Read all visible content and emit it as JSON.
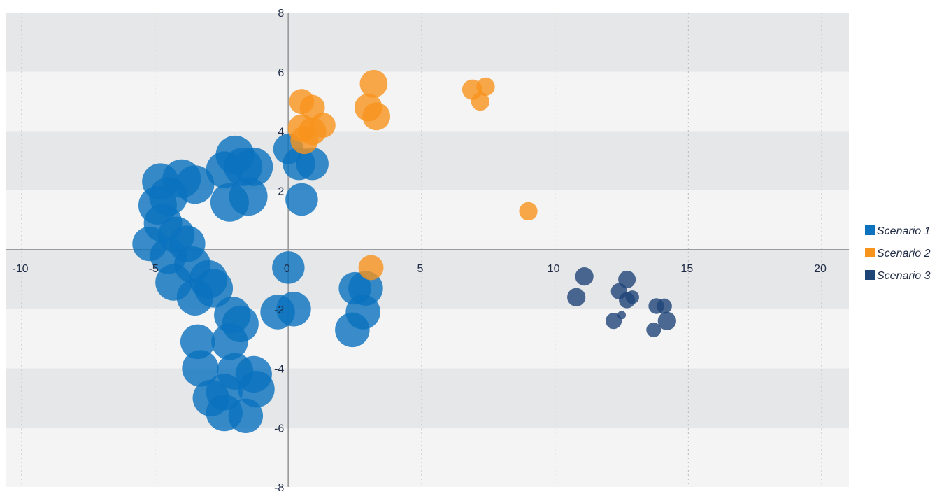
{
  "chart_data": {
    "type": "scatter",
    "subtype": "bubble",
    "title": "",
    "xlabel": "",
    "ylabel": "",
    "xlim": [
      -10,
      21
    ],
    "ylim": [
      -8,
      8
    ],
    "x_ticks": [
      -10,
      -5,
      0,
      5,
      10,
      15,
      20
    ],
    "y_ticks": [
      -8,
      -6,
      -4,
      -2,
      2,
      4,
      6,
      8
    ],
    "x_tick_labels": [
      "-10",
      "-5",
      "0",
      "5",
      "10",
      "15",
      "20"
    ],
    "y_tick_labels": [
      "-8",
      "-6",
      "-4",
      "-2",
      "2",
      "4",
      "6",
      "8"
    ],
    "grid": {
      "x": "dotted vertical",
      "y": "alternating horizontal bands"
    },
    "legend": "right",
    "series": [
      {
        "name": "Scenario 1",
        "color": "#0a72be",
        "points": [
          {
            "x": -2.0,
            "y": 3.2,
            "size": 10
          },
          {
            "x": -1.7,
            "y": 2.8,
            "size": 10
          },
          {
            "x": -2.4,
            "y": 2.7,
            "size": 9
          },
          {
            "x": -1.3,
            "y": 2.8,
            "size": 10
          },
          {
            "x": -1.5,
            "y": 1.8,
            "size": 10
          },
          {
            "x": -2.2,
            "y": 1.6,
            "size": 10
          },
          {
            "x": -4.0,
            "y": 2.4,
            "size": 10
          },
          {
            "x": -4.8,
            "y": 2.3,
            "size": 9
          },
          {
            "x": -3.5,
            "y": 2.2,
            "size": 10
          },
          {
            "x": -4.5,
            "y": 1.8,
            "size": 10
          },
          {
            "x": -4.9,
            "y": 1.5,
            "size": 10
          },
          {
            "x": -4.7,
            "y": 0.9,
            "size": 10
          },
          {
            "x": -4.2,
            "y": 0.5,
            "size": 9
          },
          {
            "x": -3.8,
            "y": 0.2,
            "size": 9
          },
          {
            "x": -5.2,
            "y": 0.2,
            "size": 8
          },
          {
            "x": -4.5,
            "y": -0.2,
            "size": 9
          },
          {
            "x": -3.6,
            "y": -0.5,
            "size": 9
          },
          {
            "x": -4.3,
            "y": -1.1,
            "size": 9
          },
          {
            "x": -3.0,
            "y": -1.0,
            "size": 10
          },
          {
            "x": -2.8,
            "y": -1.3,
            "size": 10
          },
          {
            "x": -3.5,
            "y": -1.6,
            "size": 9
          },
          {
            "x": -2.1,
            "y": -2.2,
            "size": 9
          },
          {
            "x": -1.8,
            "y": -2.5,
            "size": 9
          },
          {
            "x": -3.4,
            "y": -3.1,
            "size": 8
          },
          {
            "x": -2.2,
            "y": -3.1,
            "size": 9
          },
          {
            "x": -3.3,
            "y": -4.0,
            "size": 9
          },
          {
            "x": -2.0,
            "y": -4.1,
            "size": 9
          },
          {
            "x": -1.3,
            "y": -4.2,
            "size": 9
          },
          {
            "x": -1.2,
            "y": -4.7,
            "size": 9
          },
          {
            "x": -2.4,
            "y": -4.8,
            "size": 9
          },
          {
            "x": -2.9,
            "y": -5.0,
            "size": 9
          },
          {
            "x": -2.4,
            "y": -5.5,
            "size": 9
          },
          {
            "x": -1.6,
            "y": -5.6,
            "size": 8
          },
          {
            "x": 0.0,
            "y": 3.4,
            "size": 6
          },
          {
            "x": 0.4,
            "y": 2.9,
            "size": 7
          },
          {
            "x": 0.9,
            "y": 2.9,
            "size": 7
          },
          {
            "x": 0.5,
            "y": 1.7,
            "size": 7
          },
          {
            "x": -0.4,
            "y": -2.1,
            "size": 8
          },
          {
            "x": 0.2,
            "y": -2.0,
            "size": 8
          },
          {
            "x": 0.0,
            "y": -0.6,
            "size": 7
          },
          {
            "x": 2.5,
            "y": -1.3,
            "size": 7
          },
          {
            "x": 2.9,
            "y": -1.3,
            "size": 8
          },
          {
            "x": 2.8,
            "y": -2.1,
            "size": 8
          },
          {
            "x": 2.4,
            "y": -2.7,
            "size": 8
          }
        ]
      },
      {
        "name": "Scenario 2",
        "color": "#f7941d",
        "points": [
          {
            "x": 0.5,
            "y": 5.0,
            "size": 4
          },
          {
            "x": 0.9,
            "y": 4.8,
            "size": 4
          },
          {
            "x": 0.5,
            "y": 4.1,
            "size": 5
          },
          {
            "x": 0.9,
            "y": 4.0,
            "size": 5
          },
          {
            "x": 1.3,
            "y": 4.2,
            "size": 4
          },
          {
            "x": 0.6,
            "y": 3.7,
            "size": 5
          },
          {
            "x": 3.2,
            "y": 5.6,
            "size": 5
          },
          {
            "x": 3.0,
            "y": 4.8,
            "size": 5
          },
          {
            "x": 3.3,
            "y": 4.5,
            "size": 5
          },
          {
            "x": 6.9,
            "y": 5.4,
            "size": 2.5
          },
          {
            "x": 7.4,
            "y": 5.5,
            "size": 2
          },
          {
            "x": 7.2,
            "y": 5.0,
            "size": 2
          },
          {
            "x": 9.0,
            "y": 1.3,
            "size": 2
          },
          {
            "x": 3.1,
            "y": -0.6,
            "size": 4
          }
        ]
      },
      {
        "name": "Scenario 3",
        "color": "#1f4578",
        "points": [
          {
            "x": 11.1,
            "y": -0.9,
            "size": 2
          },
          {
            "x": 10.8,
            "y": -1.6,
            "size": 2
          },
          {
            "x": 12.4,
            "y": -1.4,
            "size": 1.5
          },
          {
            "x": 12.7,
            "y": -1.0,
            "size": 1.8
          },
          {
            "x": 12.7,
            "y": -1.7,
            "size": 1.5
          },
          {
            "x": 12.9,
            "y": -1.6,
            "size": 1
          },
          {
            "x": 12.2,
            "y": -2.4,
            "size": 1.5
          },
          {
            "x": 12.5,
            "y": -2.2,
            "size": 0.3
          },
          {
            "x": 13.8,
            "y": -1.9,
            "size": 1.4
          },
          {
            "x": 14.1,
            "y": -1.9,
            "size": 1.3
          },
          {
            "x": 14.2,
            "y": -2.4,
            "size": 2
          },
          {
            "x": 13.7,
            "y": -2.7,
            "size": 1.2
          }
        ]
      }
    ]
  }
}
